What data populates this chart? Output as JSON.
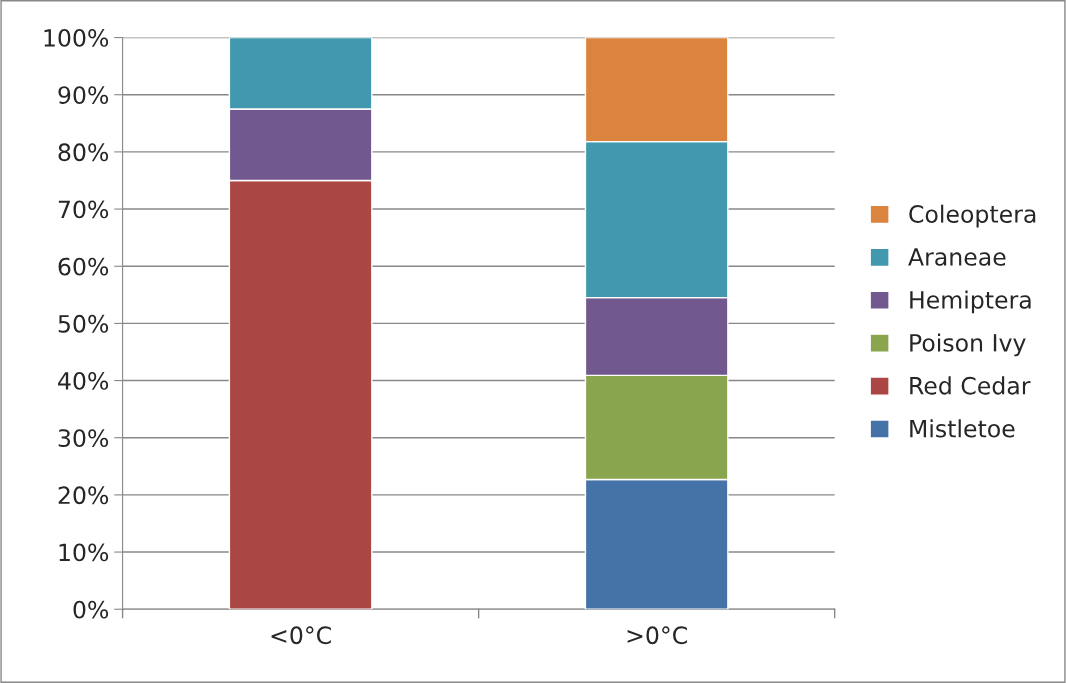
{
  "chart_data": {
    "type": "bar",
    "stacked": true,
    "categories": [
      "<0°C",
      ">0°C"
    ],
    "series": [
      {
        "name": "Mistletoe",
        "color": "#4572a7",
        "values": [
          null,
          22.7
        ]
      },
      {
        "name": "Red Cedar",
        "color": "#aa4643",
        "values": [
          75,
          null
        ]
      },
      {
        "name": "Poison Ivy",
        "color": "#89a54e",
        "values": [
          null,
          18.2
        ]
      },
      {
        "name": "Hemiptera",
        "color": "#71588f",
        "values": [
          12.5,
          13.6
        ]
      },
      {
        "name": "Araneae",
        "color": "#4198af",
        "values": [
          12.5,
          27.3
        ]
      },
      {
        "name": "Coleoptera",
        "color": "#db843d",
        "values": [
          null,
          18.2
        ]
      }
    ],
    "ylim": [
      0,
      100
    ],
    "yticks": [
      {
        "value": 0,
        "label": "0%"
      },
      {
        "value": 10,
        "label": "10%"
      },
      {
        "value": 20,
        "label": "20%"
      },
      {
        "value": 30,
        "label": "30%"
      },
      {
        "value": 40,
        "label": "40%"
      },
      {
        "value": 50,
        "label": "50%"
      },
      {
        "value": 60,
        "label": "60%"
      },
      {
        "value": 70,
        "label": "70%"
      },
      {
        "value": 80,
        "label": "80%"
      },
      {
        "value": 90,
        "label": "90%"
      },
      {
        "value": 100,
        "label": "100%"
      }
    ],
    "grid": "y",
    "legend": "right"
  }
}
